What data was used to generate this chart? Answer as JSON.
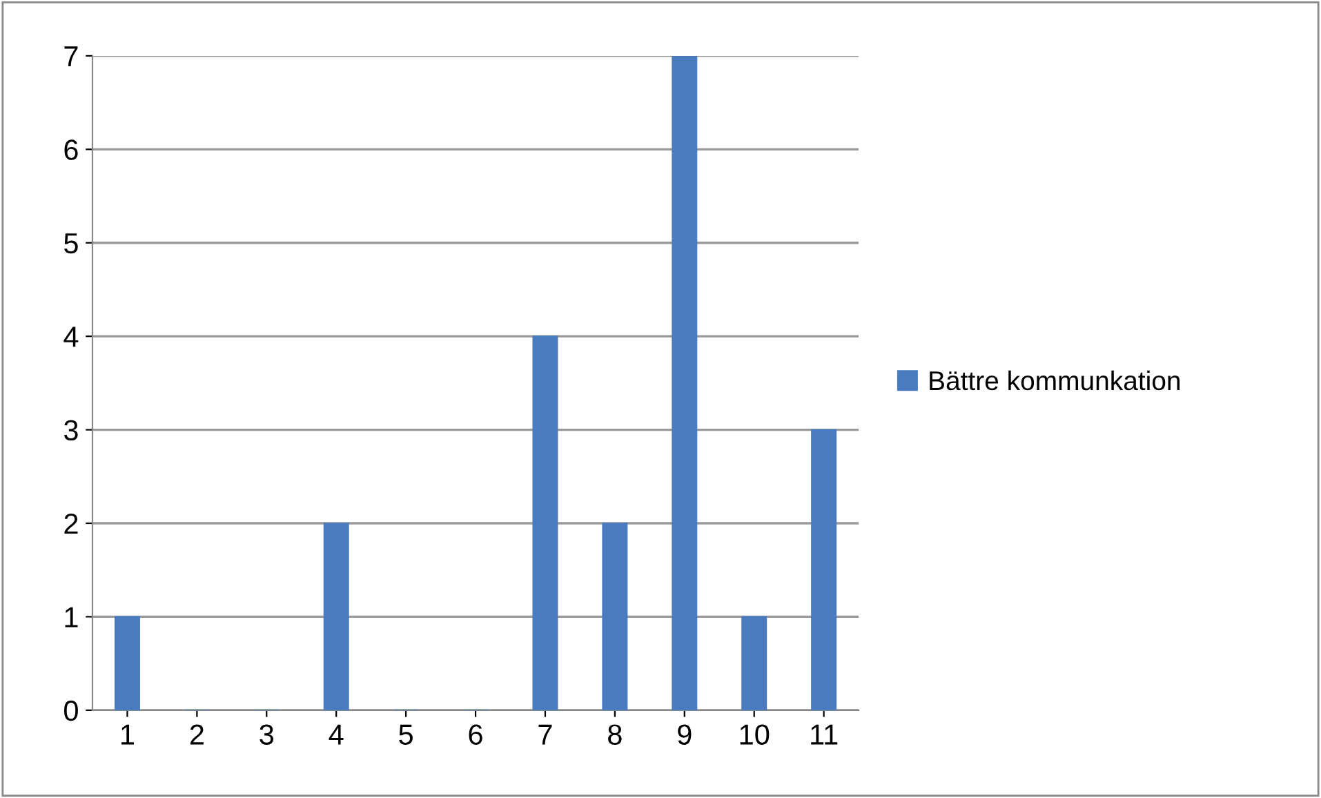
{
  "chart_data": {
    "type": "bar",
    "categories": [
      "1",
      "2",
      "3",
      "4",
      "5",
      "6",
      "7",
      "8",
      "9",
      "10",
      "11"
    ],
    "series": [
      {
        "name": "Bättre kommunkation",
        "color": "#4a7bbf",
        "values": [
          1,
          0,
          0,
          2,
          0,
          0,
          4,
          2,
          7,
          1,
          3
        ]
      }
    ],
    "ylim": [
      0,
      7
    ],
    "yticks": [
      0,
      1,
      2,
      3,
      4,
      5,
      6,
      7
    ],
    "grid": "y",
    "legend": "right"
  }
}
